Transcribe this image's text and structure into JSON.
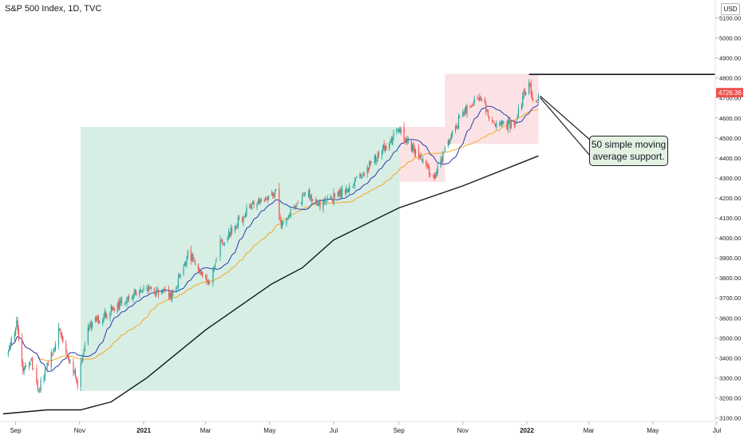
{
  "header": {
    "title": "S&P 500 Index, 1D, TVC",
    "currency": "USD"
  },
  "annotation": {
    "line1": "50 simple moving",
    "line2": "average support."
  },
  "price_label": {
    "value": "4726.36",
    "color": "#ef5350"
  },
  "colors": {
    "up": "#26a69a",
    "down": "#ef5350",
    "ma_short": "#2a3ab0",
    "ma_50": "#f5a623",
    "ma_200": "#131722",
    "green_zone": "#d3ece1",
    "red_zone": "#fbdfe2",
    "grid_axis": "#e0e3eb"
  },
  "chart_data": {
    "type": "candlestick",
    "title": "S&P 500 Index, 1D, TVC",
    "ylim": [
      3080,
      5180
    ],
    "y_ticks": [
      "3100.00",
      "3200.00",
      "3300.00",
      "3400.00",
      "3500.00",
      "3600.00",
      "3700.00",
      "3800.00",
      "3900.00",
      "4000.00",
      "4100.00",
      "4200.00",
      "4300.00",
      "4400.00",
      "4500.00",
      "4600.00",
      "4700.00",
      "4800.00",
      "4900.00",
      "5000.00",
      "5100.00"
    ],
    "x_ticks": [
      "Sep",
      "Nov",
      "2021",
      "Mar",
      "May",
      "Jul",
      "Sep",
      "Nov",
      "2022",
      "Mar",
      "May",
      "Jul"
    ],
    "anchors": [
      [
        "2020-08-25",
        3420
      ],
      [
        "2020-09-02",
        3580
      ],
      [
        "2020-09-08",
        3330
      ],
      [
        "2020-09-15",
        3400
      ],
      [
        "2020-09-23",
        3240
      ],
      [
        "2020-10-12",
        3530
      ],
      [
        "2020-10-30",
        3270
      ],
      [
        "2020-11-09",
        3550
      ],
      [
        "2020-11-30",
        3640
      ],
      [
        "2020-12-31",
        3750
      ],
      [
        "2021-01-29",
        3714
      ],
      [
        "2021-02-12",
        3930
      ],
      [
        "2021-03-04",
        3770
      ],
      [
        "2021-03-15",
        3970
      ],
      [
        "2021-04-16",
        4180
      ],
      [
        "2021-05-07",
        4230
      ],
      [
        "2021-05-12",
        4060
      ],
      [
        "2021-06-04",
        4230
      ],
      [
        "2021-06-18",
        4166
      ],
      [
        "2021-07-19",
        4260
      ],
      [
        "2021-08-27",
        4510
      ],
      [
        "2021-09-02",
        4537
      ],
      [
        "2021-10-04",
        4300
      ],
      [
        "2021-10-29",
        4605
      ],
      [
        "2021-11-18",
        4705
      ],
      [
        "2021-11-30",
        4567
      ],
      [
        "2021-12-20",
        4568
      ],
      [
        "2022-01-03",
        4796
      ],
      [
        "2022-01-07",
        4677
      ],
      [
        "2022-01-10",
        4670
      ],
      [
        "2022-01-12",
        4726
      ]
    ],
    "ma200": [
      [
        "2020-08-20",
        3120
      ],
      [
        "2020-10-01",
        3140
      ],
      [
        "2020-11-02",
        3140
      ],
      [
        "2020-12-01",
        3180
      ],
      [
        "2021-01-04",
        3300
      ],
      [
        "2021-03-01",
        3540
      ],
      [
        "2021-05-03",
        3770
      ],
      [
        "2021-06-01",
        3850
      ],
      [
        "2021-07-01",
        3990
      ],
      [
        "2021-09-01",
        4150
      ],
      [
        "2021-11-01",
        4260
      ],
      [
        "2022-01-12",
        4410
      ]
    ],
    "zones": [
      {
        "kind": "green",
        "start": "2020-11-02",
        "end": "2021-09-02",
        "low": 3235,
        "high": 4555
      },
      {
        "kind": "red",
        "start": "2021-09-02",
        "end": "2021-10-15",
        "low": 4280,
        "high": 4555
      },
      {
        "kind": "red",
        "start": "2021-10-15",
        "end": "2022-01-12",
        "low": 4470,
        "high": 4820
      }
    ],
    "hline": {
      "value": 4818,
      "start": "2022-01-03"
    },
    "last_price": 4726.36
  }
}
